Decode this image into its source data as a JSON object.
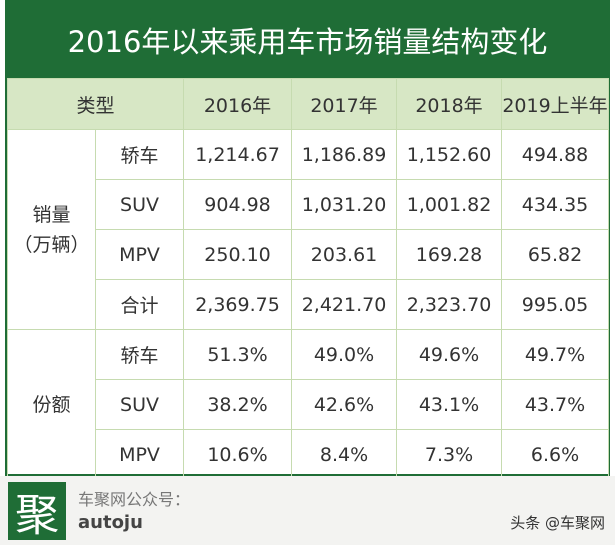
{
  "title": "2016年以来乘用车市场销量结构变化",
  "header": {
    "type_label": "类型",
    "years": [
      "2016年",
      "2017年",
      "2018年",
      "2019上半年"
    ]
  },
  "groups": [
    {
      "label": "销量",
      "unit": "（万辆）",
      "rows": [
        {
          "label": "轿车",
          "cells": [
            "1,214.67",
            "1,186.89",
            "1,152.60",
            "494.88"
          ]
        },
        {
          "label": "SUV",
          "cells": [
            "904.98",
            "1,031.20",
            "1,001.82",
            "434.35"
          ]
        },
        {
          "label": "MPV",
          "cells": [
            "250.10",
            "203.61",
            "169.28",
            "65.82"
          ]
        },
        {
          "label": "合计",
          "cells": [
            "2,369.75",
            "2,421.70",
            "2,323.70",
            "995.05"
          ]
        }
      ]
    },
    {
      "label": "份额",
      "rows": [
        {
          "label": "轿车",
          "cells": [
            "51.3%",
            "49.0%",
            "49.6%",
            "49.7%"
          ]
        },
        {
          "label": "SUV",
          "cells": [
            "38.2%",
            "42.6%",
            "43.1%",
            "43.7%"
          ]
        },
        {
          "label": "MPV",
          "cells": [
            "10.6%",
            "8.4%",
            "7.3%",
            "6.6%"
          ]
        }
      ]
    }
  ],
  "footer": {
    "logo": "聚",
    "account_label": "车聚网公众号：",
    "account_id": "autoju",
    "watermark": "头条 @车聚网"
  }
}
